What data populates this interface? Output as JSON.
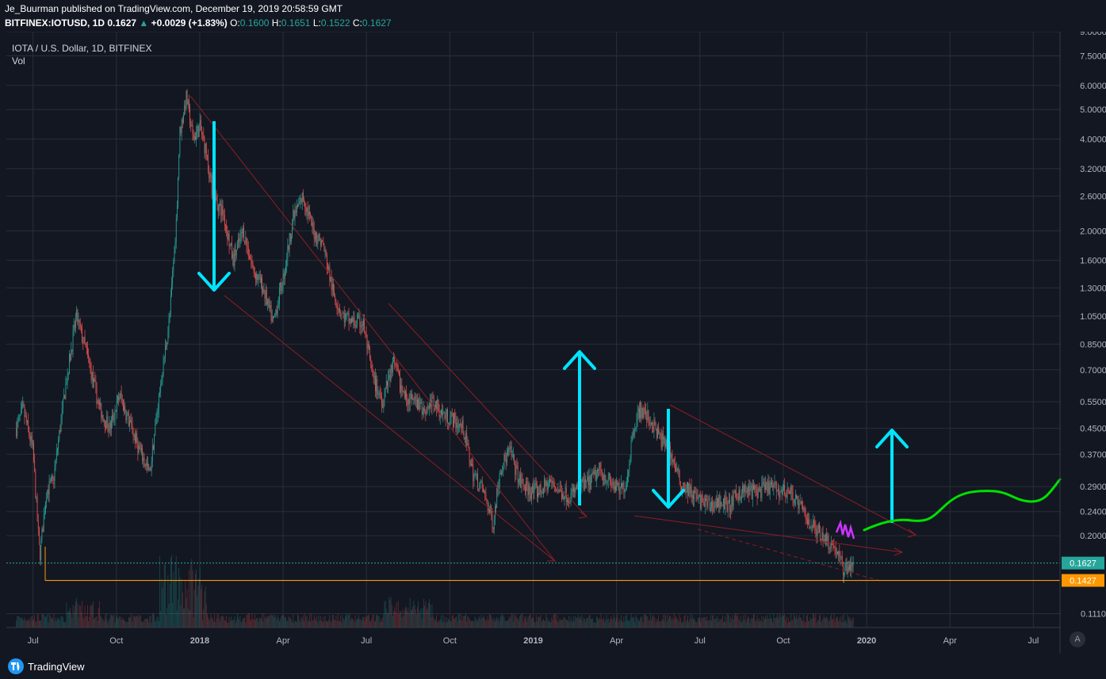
{
  "header": {
    "publisher": "Je_Buurman",
    "published_text": "published on TradingView.com, December 19, 2019 20:58:59 GMT",
    "symbol": "BITFINEX:IOTUSD, 1D",
    "last": "0.1627",
    "change": "+0.0029 (+1.83%)",
    "o_label": "O:",
    "o": "0.1600",
    "h_label": "H:",
    "h": "0.1651",
    "l_label": "L:",
    "l": "0.1522",
    "c_label": "C:",
    "c": "0.1627",
    "up_arrow": "▲"
  },
  "legend": {
    "title": "IOTA / U.S. Dollar, 1D, BITFINEX",
    "vol": "Vol"
  },
  "footer": {
    "brand": "TradingView",
    "auto_label": "A"
  },
  "colors": {
    "background": "#131722",
    "grid": "#2a2e39",
    "up": "#26a69a",
    "down": "#ef5350",
    "trendline": "#8b1f24",
    "cyan": "#00e5ff",
    "green": "#00e000",
    "magenta": "#cc33ff",
    "orange": "#ff9800",
    "price_label": "#26a69a"
  },
  "chart_data": {
    "type": "candlestick",
    "title": "IOTA / U.S. Dollar, 1D, BITFINEX",
    "y_scale": "log",
    "ylim": [
      0.1,
      9.0
    ],
    "y_ticks": [
      "9.0000",
      "7.5000",
      "6.0000",
      "5.0000",
      "4.0000",
      "3.2000",
      "2.6000",
      "2.0000",
      "1.6000",
      "1.3000",
      "1.0500",
      "0.8500",
      "0.7000",
      "0.5500",
      "0.4500",
      "0.3700",
      "0.2900",
      "0.2400",
      "0.2000",
      "0.1110"
    ],
    "y_tick_values": [
      9.0,
      7.5,
      6.0,
      5.0,
      4.0,
      3.2,
      2.6,
      2.0,
      1.6,
      1.3,
      1.05,
      0.85,
      0.7,
      0.55,
      0.45,
      0.37,
      0.29,
      0.24,
      0.2,
      0.111
    ],
    "x_ticks": [
      {
        "label": "Jul",
        "t": 2017.5,
        "bold": false
      },
      {
        "label": "Oct",
        "t": 2017.75,
        "bold": false
      },
      {
        "label": "2018",
        "t": 2018.0,
        "bold": true
      },
      {
        "label": "Apr",
        "t": 2018.25,
        "bold": false
      },
      {
        "label": "Jul",
        "t": 2018.5,
        "bold": false
      },
      {
        "label": "Oct",
        "t": 2018.75,
        "bold": false
      },
      {
        "label": "2019",
        "t": 2019.0,
        "bold": true
      },
      {
        "label": "Apr",
        "t": 2019.25,
        "bold": false
      },
      {
        "label": "Jul",
        "t": 2019.5,
        "bold": false
      },
      {
        "label": "Oct",
        "t": 2019.75,
        "bold": false
      },
      {
        "label": "2020",
        "t": 2020.0,
        "bold": true
      },
      {
        "label": "Apr",
        "t": 2020.25,
        "bold": false
      },
      {
        "label": "Jul",
        "t": 2020.5,
        "bold": false
      }
    ],
    "xlim": [
      2017.42,
      2020.58
    ],
    "price_path": [
      [
        2017.45,
        0.45
      ],
      [
        2017.47,
        0.52
      ],
      [
        2017.5,
        0.38
      ],
      [
        2017.52,
        0.17
      ],
      [
        2017.54,
        0.28
      ],
      [
        2017.56,
        0.3
      ],
      [
        2017.6,
        0.65
      ],
      [
        2017.63,
        1.05
      ],
      [
        2017.66,
        0.8
      ],
      [
        2017.7,
        0.52
      ],
      [
        2017.73,
        0.45
      ],
      [
        2017.76,
        0.58
      ],
      [
        2017.78,
        0.5
      ],
      [
        2017.82,
        0.38
      ],
      [
        2017.85,
        0.32
      ],
      [
        2017.88,
        0.6
      ],
      [
        2017.91,
        1.05
      ],
      [
        2017.93,
        2.2
      ],
      [
        2017.94,
        4.2
      ],
      [
        2017.96,
        5.5
      ],
      [
        2017.98,
        4.0
      ],
      [
        2018.0,
        4.4
      ],
      [
        2018.02,
        3.6
      ],
      [
        2018.04,
        2.6
      ],
      [
        2018.07,
        2.3
      ],
      [
        2018.1,
        1.6
      ],
      [
        2018.13,
        2.0
      ],
      [
        2018.16,
        1.5
      ],
      [
        2018.19,
        1.3
      ],
      [
        2018.22,
        1.0
      ],
      [
        2018.25,
        1.4
      ],
      [
        2018.28,
        2.2
      ],
      [
        2018.31,
        2.6
      ],
      [
        2018.34,
        2.0
      ],
      [
        2018.37,
        1.8
      ],
      [
        2018.4,
        1.25
      ],
      [
        2018.43,
        1.05
      ],
      [
        2018.46,
        1.0
      ],
      [
        2018.49,
        1.0
      ],
      [
        2018.52,
        0.65
      ],
      [
        2018.55,
        0.55
      ],
      [
        2018.58,
        0.75
      ],
      [
        2018.61,
        0.58
      ],
      [
        2018.64,
        0.55
      ],
      [
        2018.67,
        0.52
      ],
      [
        2018.7,
        0.55
      ],
      [
        2018.73,
        0.5
      ],
      [
        2018.76,
        0.48
      ],
      [
        2018.79,
        0.45
      ],
      [
        2018.82,
        0.32
      ],
      [
        2018.85,
        0.28
      ],
      [
        2018.88,
        0.22
      ],
      [
        2018.9,
        0.33
      ],
      [
        2018.93,
        0.38
      ],
      [
        2018.96,
        0.3
      ],
      [
        2018.99,
        0.28
      ],
      [
        2019.02,
        0.28
      ],
      [
        2019.05,
        0.3
      ],
      [
        2019.08,
        0.28
      ],
      [
        2019.11,
        0.27
      ],
      [
        2019.14,
        0.29
      ],
      [
        2019.17,
        0.3
      ],
      [
        2019.2,
        0.33
      ],
      [
        2019.23,
        0.3
      ],
      [
        2019.26,
        0.28
      ],
      [
        2019.28,
        0.3
      ],
      [
        2019.3,
        0.45
      ],
      [
        2019.32,
        0.52
      ],
      [
        2019.35,
        0.48
      ],
      [
        2019.38,
        0.42
      ],
      [
        2019.41,
        0.38
      ],
      [
        2019.44,
        0.3
      ],
      [
        2019.47,
        0.28
      ],
      [
        2019.5,
        0.26
      ],
      [
        2019.53,
        0.25
      ],
      [
        2019.56,
        0.26
      ],
      [
        2019.59,
        0.25
      ],
      [
        2019.62,
        0.28
      ],
      [
        2019.65,
        0.28
      ],
      [
        2019.68,
        0.28
      ],
      [
        2019.71,
        0.29
      ],
      [
        2019.74,
        0.28
      ],
      [
        2019.77,
        0.28
      ],
      [
        2019.8,
        0.25
      ],
      [
        2019.83,
        0.22
      ],
      [
        2019.85,
        0.21
      ],
      [
        2019.87,
        0.2
      ],
      [
        2019.89,
        0.19
      ],
      [
        2019.91,
        0.18
      ],
      [
        2019.93,
        0.155
      ],
      [
        2019.96,
        0.1627
      ]
    ],
    "last_price": "0.1627",
    "support_price": "0.1427"
  }
}
